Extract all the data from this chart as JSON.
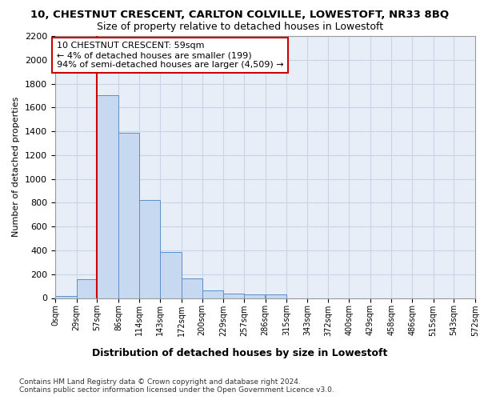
{
  "title_line1": "10, CHESTNUT CRESCENT, CARLTON COLVILLE, LOWESTOFT, NR33 8BQ",
  "title_line2": "Size of property relative to detached houses in Lowestoft",
  "xlabel": "Distribution of detached houses by size in Lowestoft",
  "ylabel": "Number of detached properties",
  "bin_labels": [
    "0sqm",
    "29sqm",
    "57sqm",
    "86sqm",
    "114sqm",
    "143sqm",
    "172sqm",
    "200sqm",
    "229sqm",
    "257sqm",
    "286sqm",
    "315sqm",
    "343sqm",
    "372sqm",
    "400sqm",
    "429sqm",
    "458sqm",
    "486sqm",
    "515sqm",
    "543sqm",
    "572sqm"
  ],
  "bar_values": [
    20,
    155,
    1700,
    1390,
    825,
    385,
    162,
    65,
    35,
    28,
    28,
    0,
    0,
    0,
    0,
    0,
    0,
    0,
    0,
    0
  ],
  "bar_color": "#c6d9f0",
  "bar_edge_color": "#5b8fc9",
  "vline_x": 57,
  "vline_color": "#cc0000",
  "annotation_text": "10 CHESTNUT CRESCENT: 59sqm\n← 4% of detached houses are smaller (199)\n94% of semi-detached houses are larger (4,509) →",
  "annotation_box_color": "#ffffff",
  "annotation_box_edge_color": "#cc0000",
  "ylim": [
    0,
    2200
  ],
  "yticks": [
    0,
    200,
    400,
    600,
    800,
    1000,
    1200,
    1400,
    1600,
    1800,
    2000,
    2200
  ],
  "grid_color": "#c8d4e8",
  "background_color": "#e8eef8",
  "footnote": "Contains HM Land Registry data © Crown copyright and database right 2024.\nContains public sector information licensed under the Open Government Licence v3.0.",
  "bin_edges": [
    0,
    29,
    57,
    86,
    114,
    143,
    172,
    200,
    229,
    257,
    286,
    315,
    343,
    372,
    400,
    429,
    458,
    486,
    515,
    543,
    572
  ]
}
